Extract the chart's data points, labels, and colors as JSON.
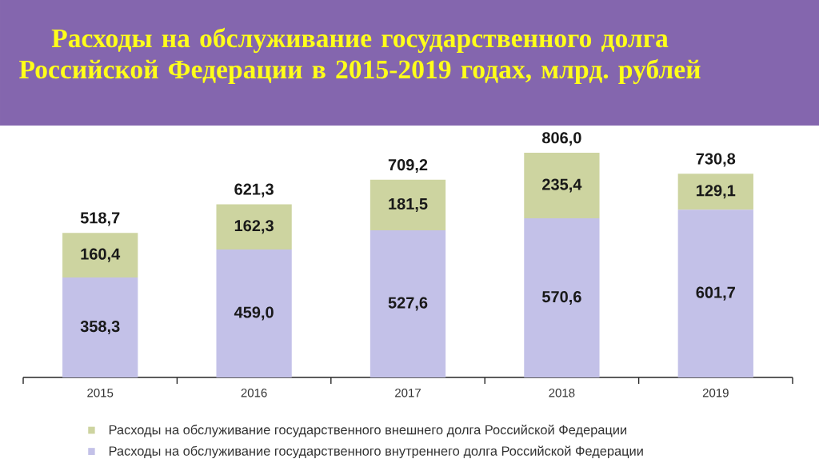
{
  "chart_data": {
    "type": "bar",
    "title": "Расходы на обслуживание государственного долга Российской Федерации в 2015-2019 годах, млрд. рублей",
    "categories": [
      "2015",
      "2016",
      "2017",
      "2018",
      "2019"
    ],
    "stacked": true,
    "series": [
      {
        "name": "Расходы на обслуживание государственного внутреннего долга Российской Федерации",
        "color": "#c3c1e8",
        "values": [
          358.3,
          459.0,
          527.6,
          570.6,
          601.7
        ],
        "value_labels": [
          "358,3",
          "459,0",
          "527,6",
          "570,6",
          "601,7"
        ]
      },
      {
        "name": "Расходы на обслуживание государственного внешнего долга Российской Федерации",
        "color": "#cdd4a0",
        "values": [
          160.4,
          162.3,
          181.5,
          235.4,
          129.1
        ],
        "value_labels": [
          "160,4",
          "162,3",
          "181,5",
          "235,4",
          "129,1"
        ]
      }
    ],
    "totals": [
      "518,7",
      "621,3",
      "709,2",
      "806,0",
      "730,8"
    ],
    "tick_labels": "x",
    "legend": "bottom"
  }
}
